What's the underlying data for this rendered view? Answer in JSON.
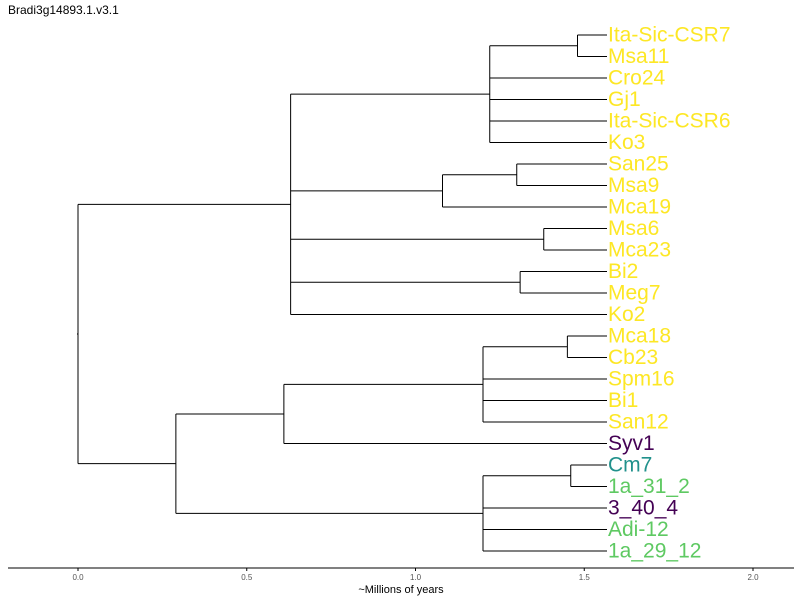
{
  "title": "Bradi3g14893.1.v3.1",
  "colors": {
    "yellow": "#fde725",
    "green": "#5ec962",
    "teal": "#21918c",
    "purple": "#440154",
    "branch": "#000000"
  },
  "axis": {
    "label": "~Millions of years",
    "ticks": [
      "0.0",
      "0.5",
      "1.0",
      "1.5",
      "2.0"
    ],
    "tick_values": [
      0,
      0.5,
      1.0,
      1.5,
      2.0
    ],
    "range": [
      -0.2,
      2.12
    ]
  },
  "chart_data": {
    "type": "dendrogram",
    "leaves": [
      {
        "name": "Ita-Sic-CSR7",
        "color": "yellow"
      },
      {
        "name": "Msa11",
        "color": "yellow"
      },
      {
        "name": "Cro24",
        "color": "yellow"
      },
      {
        "name": "Gj1",
        "color": "yellow"
      },
      {
        "name": "Ita-Sic-CSR6",
        "color": "yellow"
      },
      {
        "name": "Ko3",
        "color": "yellow"
      },
      {
        "name": "San25",
        "color": "yellow"
      },
      {
        "name": "Msa9",
        "color": "yellow"
      },
      {
        "name": "Mca19",
        "color": "yellow"
      },
      {
        "name": "Msa6",
        "color": "yellow"
      },
      {
        "name": "Mca23",
        "color": "yellow"
      },
      {
        "name": "Bi2",
        "color": "yellow"
      },
      {
        "name": "Meg7",
        "color": "yellow"
      },
      {
        "name": "Ko2",
        "color": "yellow"
      },
      {
        "name": "Mca18",
        "color": "yellow"
      },
      {
        "name": "Cb23",
        "color": "yellow"
      },
      {
        "name": "Spm16",
        "color": "yellow"
      },
      {
        "name": "Bi1",
        "color": "yellow"
      },
      {
        "name": "San12",
        "color": "yellow"
      },
      {
        "name": "Syv1",
        "color": "purple"
      },
      {
        "name": "Cm7",
        "color": "teal"
      },
      {
        "name": "1a_31_2",
        "color": "green"
      },
      {
        "name": "3_40_4",
        "color": "purple"
      },
      {
        "name": "Adi-12",
        "color": "green"
      },
      {
        "name": "1a_29_12",
        "color": "green"
      }
    ],
    "tree": {
      "t": 0.0,
      "children": [
        {
          "t": 0.63,
          "children": [
            {
              "t": 1.22,
              "children": [
                {
                  "t": 1.48,
                  "children": [
                    {
                      "leaf": 0
                    },
                    {
                      "leaf": 1
                    }
                  ]
                },
                {
                  "leaf": 2
                },
                {
                  "leaf": 3
                },
                {
                  "leaf": 4
                },
                {
                  "leaf": 5
                }
              ]
            },
            {
              "t": 1.08,
              "children": [
                {
                  "t": 1.3,
                  "children": [
                    {
                      "leaf": 6
                    },
                    {
                      "leaf": 7
                    }
                  ]
                },
                {
                  "leaf": 8
                }
              ]
            },
            {
              "t": 1.38,
              "children": [
                {
                  "leaf": 9
                },
                {
                  "leaf": 10
                }
              ]
            },
            {
              "t": 1.31,
              "children": [
                {
                  "leaf": 11
                },
                {
                  "leaf": 12
                }
              ]
            },
            {
              "leaf": 13
            }
          ]
        },
        {
          "t": 0.29,
          "children": [
            {
              "t": 0.61,
              "children": [
                {
                  "t": 1.2,
                  "children": [
                    {
                      "t": 1.45,
                      "children": [
                        {
                          "leaf": 14
                        },
                        {
                          "leaf": 15
                        }
                      ]
                    },
                    {
                      "leaf": 16
                    },
                    {
                      "leaf": 17
                    },
                    {
                      "leaf": 18
                    }
                  ]
                },
                {
                  "leaf": 19
                }
              ]
            },
            {
              "t": 1.2,
              "children": [
                {
                  "t": 1.46,
                  "children": [
                    {
                      "leaf": 20
                    },
                    {
                      "leaf": 21
                    }
                  ]
                },
                {
                  "leaf": 22
                },
                {
                  "leaf": 23
                },
                {
                  "leaf": 24
                }
              ]
            }
          ]
        }
      ]
    }
  }
}
